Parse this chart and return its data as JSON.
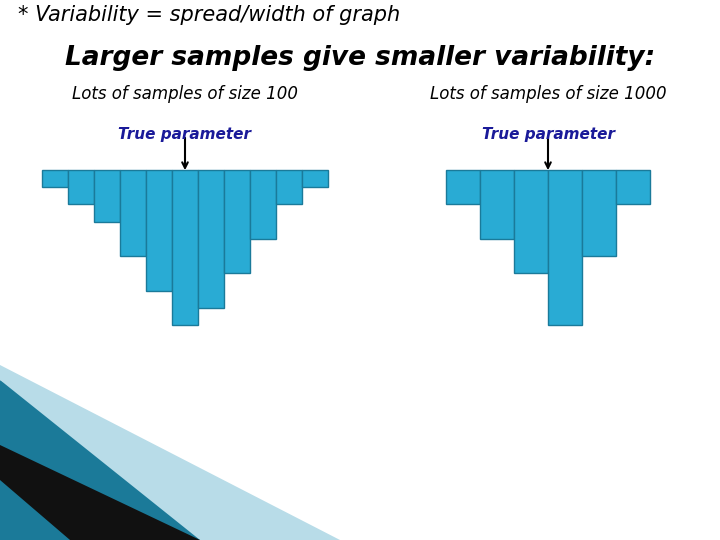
{
  "title_line1": "* Variability = spread/width of graph",
  "title_line2": "Larger samples give smaller variability:",
  "label_left": "Lots of samples of size 100",
  "label_right": "Lots of samples of size 1000",
  "arrow_label": "True parameter",
  "bar_color": "#29ABD4",
  "bar_edge_color": "#1A7A9A",
  "hist1_heights": [
    1,
    2,
    3,
    5,
    7,
    9,
    8,
    6,
    4,
    2,
    1
  ],
  "hist2_heights": [
    2,
    4,
    6,
    9,
    5,
    2
  ],
  "background_color": "#ffffff",
  "arrow_text_color": "#1A1A99",
  "corner_teal_dark": "#1B7A99",
  "corner_teal_light": "#A8D8E8",
  "corner_black": "#111111"
}
